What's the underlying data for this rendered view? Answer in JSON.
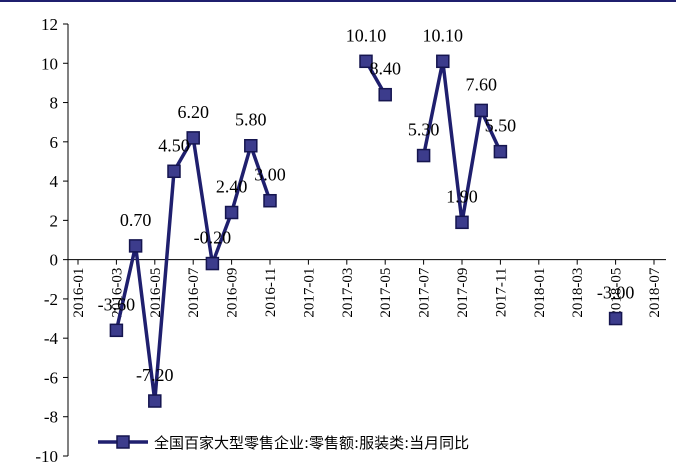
{
  "chart_data": {
    "type": "line",
    "title": "",
    "xlabel": "",
    "ylabel": "",
    "ylim": [
      -10,
      12
    ],
    "yticks": [
      -10,
      -8,
      -6,
      -4,
      -2,
      0,
      2,
      4,
      6,
      8,
      10,
      12
    ],
    "x_tick_labels": [
      "2016-01",
      "2016-03",
      "2016-05",
      "2016-07",
      "2016-09",
      "2016-11",
      "2017-01",
      "2017-03",
      "2017-05",
      "2017-07",
      "2017-09",
      "2017-11",
      "2018-01",
      "2018-03",
      "2018-05",
      "2018-07"
    ],
    "grid": false,
    "legend_position": "bottom",
    "series": [
      {
        "name": "全国百家大型零售企业:零售额:服装类:当月同比",
        "color": "#1f1f6e",
        "points": [
          {
            "x": "2016-03",
            "y": -3.6,
            "label": "-3.60"
          },
          {
            "x": "2016-04",
            "y": 0.7,
            "label": "0.70"
          },
          {
            "x": "2016-05",
            "y": -7.2,
            "label": "-7.20"
          },
          {
            "x": "2016-06",
            "y": 4.5,
            "label": "4.50"
          },
          {
            "x": "2016-07",
            "y": 6.2,
            "label": "6.20"
          },
          {
            "x": "2016-08",
            "y": -0.2,
            "label": "-0.20"
          },
          {
            "x": "2016-09",
            "y": 2.4,
            "label": "2.40"
          },
          {
            "x": "2016-10",
            "y": 5.8,
            "label": "5.80"
          },
          {
            "x": "2016-11",
            "y": 3.0,
            "label": "3.00"
          },
          {
            "x": "2017-04",
            "y": 10.1,
            "label": "10.10"
          },
          {
            "x": "2017-05",
            "y": 8.4,
            "label": "8.40"
          },
          {
            "x": "2017-07",
            "y": 5.3,
            "label": "5.30"
          },
          {
            "x": "2017-08",
            "y": 10.1,
            "label": "10.10"
          },
          {
            "x": "2017-09",
            "y": 1.9,
            "label": "1.90"
          },
          {
            "x": "2017-10",
            "y": 7.6,
            "label": "7.60"
          },
          {
            "x": "2017-11",
            "y": 5.5,
            "label": "5.50"
          },
          {
            "x": "2018-05",
            "y": -3.0,
            "label": "-3.00"
          }
        ]
      }
    ]
  }
}
